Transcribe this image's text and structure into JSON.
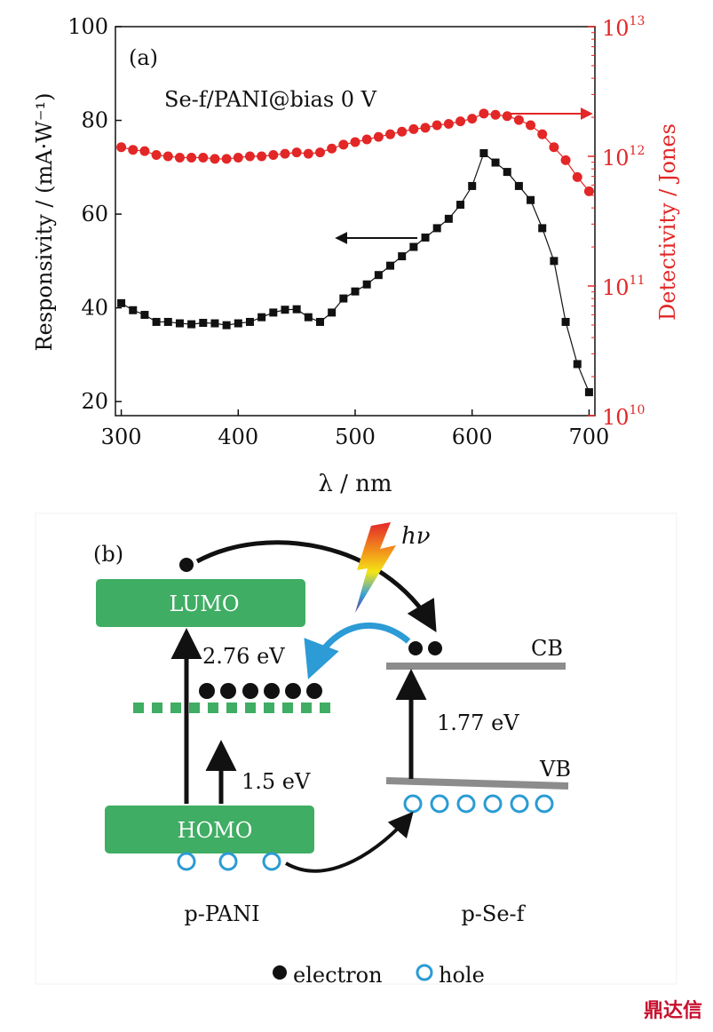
{
  "chart_data": [
    {
      "type": "scatter",
      "panel_label": "(a)",
      "annotation": "Se-f/PANI@bias 0 V",
      "xlabel": "λ / nm",
      "ylabel": "Responsivity / (mA·W⁻¹)",
      "y2label": "Detectivity / Jones",
      "xlim": [
        295,
        705
      ],
      "ylim": [
        17,
        100
      ],
      "y2lim_log10": [
        10,
        13
      ],
      "x_ticks": [
        300,
        400,
        500,
        600,
        700
      ],
      "y_ticks": [
        20,
        40,
        60,
        80,
        100
      ],
      "y2_ticks": [
        {
          "base": "10",
          "exp": "10",
          "log": 10
        },
        {
          "base": "10",
          "exp": "11",
          "log": 11
        },
        {
          "base": "10",
          "exp": "12",
          "log": 12
        },
        {
          "base": "10",
          "exp": "13",
          "log": 13
        }
      ],
      "grid": false,
      "series": [
        {
          "axis": "left",
          "color": "#111111",
          "marker": "square",
          "x": [
            300,
            310,
            320,
            330,
            340,
            350,
            360,
            370,
            380,
            390,
            400,
            410,
            420,
            430,
            440,
            450,
            460,
            470,
            480,
            490,
            500,
            510,
            520,
            530,
            540,
            550,
            560,
            570,
            580,
            590,
            600,
            610,
            620,
            630,
            640,
            650,
            660,
            670,
            680,
            690,
            700
          ],
          "values": [
            41.0,
            39.5,
            38.5,
            37.0,
            37.0,
            36.7,
            36.5,
            36.8,
            36.7,
            36.3,
            36.7,
            37.0,
            38.0,
            39.0,
            39.6,
            39.7,
            38.0,
            37.0,
            39.0,
            42.0,
            43.5,
            45.0,
            47.0,
            49.0,
            51.0,
            53.0,
            55.0,
            57.0,
            59.0,
            62.0,
            66.0,
            73.0,
            71.0,
            69.0,
            66.0,
            63.0,
            57.0,
            50.0,
            37.0,
            28.0,
            22.0
          ]
        },
        {
          "axis": "right",
          "scale": "log",
          "color": "#e32626",
          "marker": "circle",
          "x": [
            300,
            310,
            320,
            330,
            340,
            350,
            360,
            370,
            380,
            390,
            400,
            410,
            420,
            430,
            440,
            450,
            460,
            470,
            480,
            490,
            500,
            510,
            520,
            530,
            540,
            550,
            560,
            570,
            580,
            590,
            600,
            610,
            620,
            630,
            640,
            650,
            660,
            670,
            680,
            690,
            700
          ],
          "values": [
            12.07,
            12.05,
            12.04,
            12.01,
            12.0,
            11.99,
            11.99,
            11.99,
            11.98,
            11.98,
            11.99,
            12.0,
            12.0,
            12.01,
            12.02,
            12.03,
            12.02,
            12.03,
            12.06,
            12.09,
            12.11,
            12.13,
            12.15,
            12.17,
            12.19,
            12.21,
            12.22,
            12.24,
            12.25,
            12.27,
            12.29,
            12.33,
            12.32,
            12.31,
            12.28,
            12.24,
            12.17,
            12.07,
            11.97,
            11.84,
            11.73
          ]
        }
      ]
    },
    {
      "type": "diagram",
      "panel_label": "(b)",
      "lumo_label": "LUMO",
      "homo_label": "HOMO",
      "cb_label": "CB",
      "vb_label": "VB",
      "gap_pani": "2.76 eV",
      "gap_polaron": "1.5 eV",
      "gap_sef": "1.77 eV",
      "photon_label": "hν",
      "material_left": "p-PANI",
      "material_right": "p-Se-f",
      "legend_electron": "electron",
      "legend_hole": "hole",
      "colors": {
        "level": "#3fad63",
        "band": "#8c8c8c",
        "hole": "#2b9bd3",
        "arrow_blue": "#2c9bd6"
      }
    }
  ],
  "watermark": "鼎达信"
}
